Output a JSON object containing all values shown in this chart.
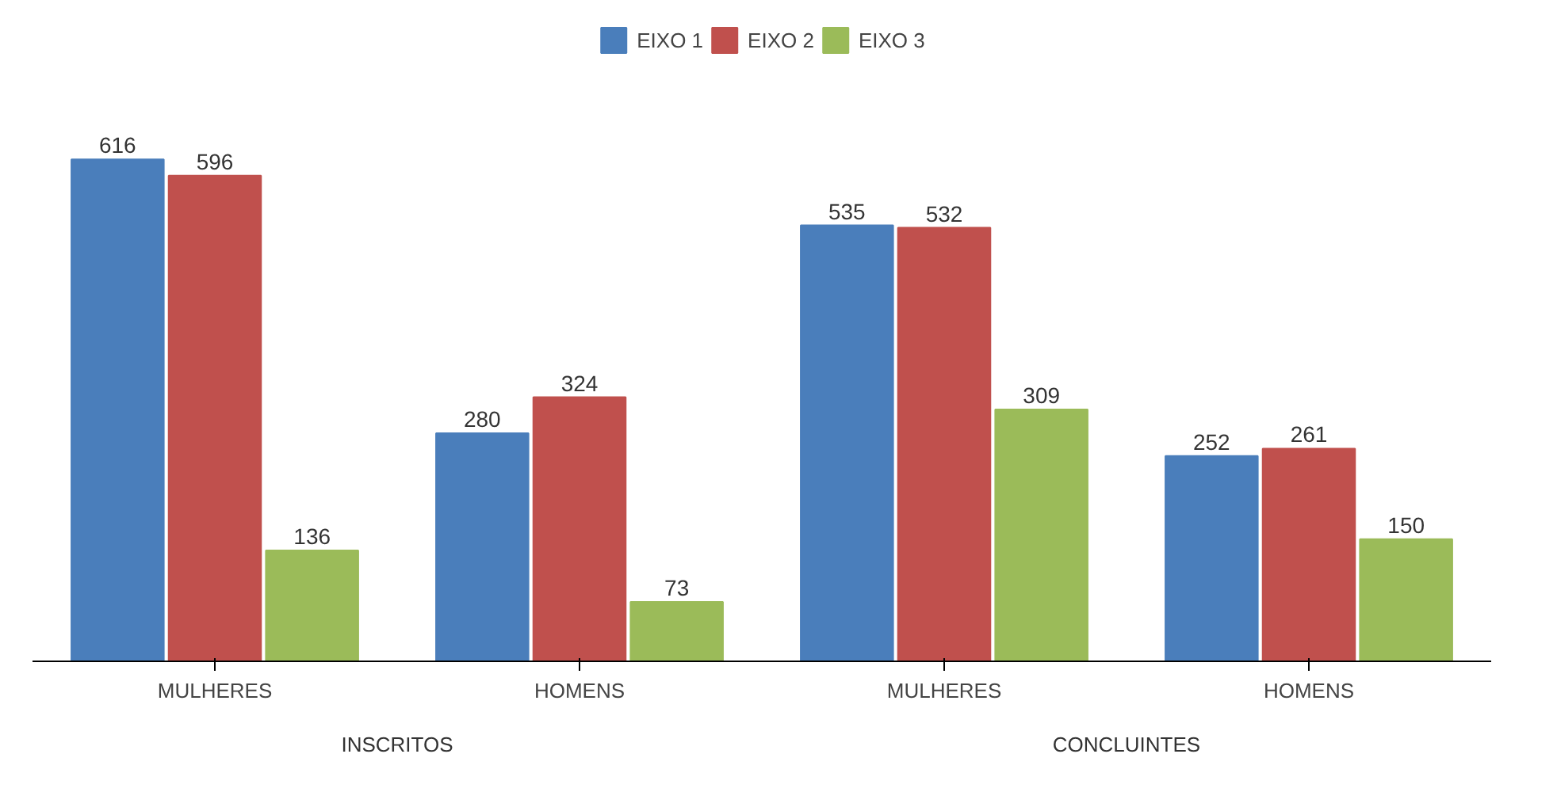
{
  "chart_data": {
    "type": "bar",
    "categories": [
      "MULHERES",
      "HOMENS",
      "MULHERES",
      "HOMENS"
    ],
    "series": [
      {
        "name": "EIXO 1",
        "color": "#4a7ebb",
        "values": [
          616,
          280,
          535,
          252
        ]
      },
      {
        "name": "EIXO 2",
        "color": "#c0504d",
        "values": [
          596,
          324,
          532,
          261
        ]
      },
      {
        "name": "EIXO 3",
        "color": "#9bbb59",
        "values": [
          136,
          73,
          309,
          150
        ]
      }
    ],
    "data_labels": true,
    "legend": "top",
    "grid": false,
    "annotations": [
      "INSCRITOS",
      "CONCLUINTES"
    ]
  }
}
